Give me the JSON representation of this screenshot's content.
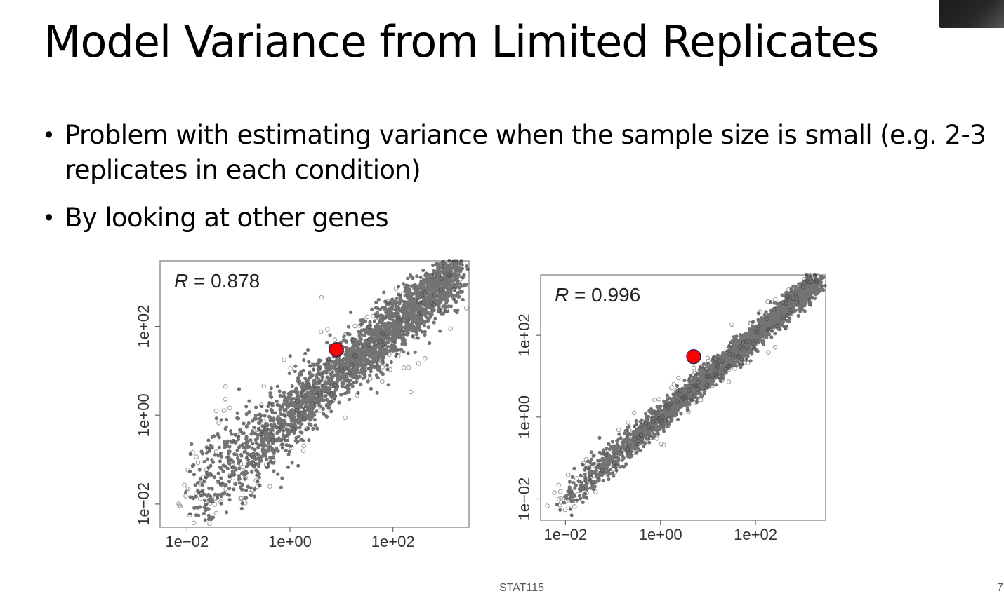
{
  "slide": {
    "title": "Model Variance from Limited Replicates",
    "bullets": [
      "Problem with estimating variance when the sample size is small (e.g. 2-3 replicates in each condition)",
      "By looking at other genes"
    ],
    "footer": "STAT115",
    "page_number": "7"
  },
  "chart_data": [
    {
      "type": "scatter",
      "scale": "log10",
      "annotation": "R = 0.878",
      "xlim": [
        0.003,
        3000
      ],
      "ylim": [
        0.003,
        3000
      ],
      "x_ticks": [
        "1e−02",
        "1e+00",
        "1e+02"
      ],
      "y_ticks": [
        "1e−02",
        "1e+00",
        "1e+02"
      ],
      "highlight_point": {
        "x": 8,
        "y": 30,
        "color": "#ff0000"
      },
      "spread": 0.32,
      "grid": false
    },
    {
      "type": "scatter",
      "scale": "log10",
      "annotation": "R = 0.996",
      "xlim": [
        0.003,
        3000
      ],
      "ylim": [
        0.003,
        3000
      ],
      "x_ticks": [
        "1e−02",
        "1e+00",
        "1e+02"
      ],
      "y_ticks": [
        "1e−02",
        "1e+00",
        "1e+02"
      ],
      "highlight_point": {
        "x": 5,
        "y": 30,
        "color": "#ff0000"
      },
      "spread": 0.12,
      "grid": false
    }
  ]
}
